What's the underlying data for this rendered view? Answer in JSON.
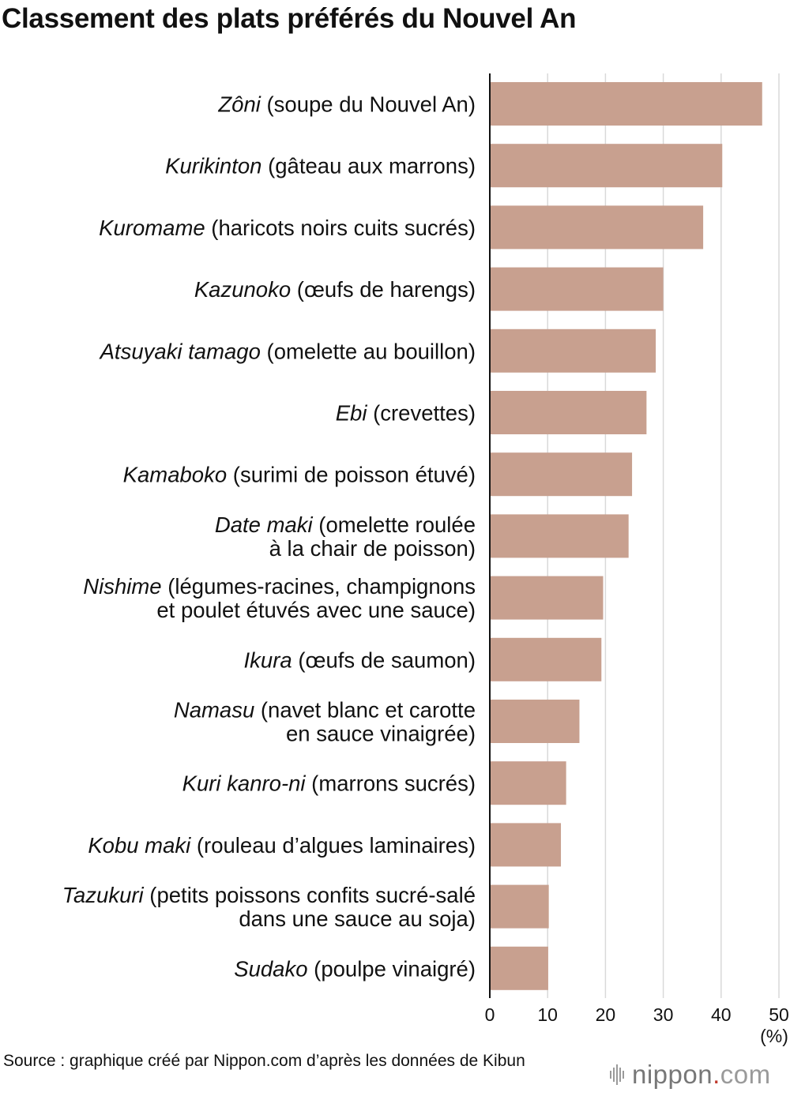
{
  "colors": {
    "bar": "#c8a08f",
    "grid": "#d9d9d9",
    "axis": "#111111",
    "text": "#111111",
    "logo_text": "#777777",
    "logo_dot": "#c0392b"
  },
  "chart_data": {
    "type": "bar",
    "orientation": "horizontal",
    "title": "Classement des plats préférés du Nouvel An",
    "xlabel": "",
    "unit": "(%)",
    "xlim": [
      0,
      50
    ],
    "ticks": [
      0,
      10,
      20,
      30,
      40,
      50
    ],
    "grid": true,
    "categories": [
      {
        "italic": "Zôni",
        "lines": [
          " (soupe du Nouvel An)"
        ]
      },
      {
        "italic": "Kurikinton",
        "lines": [
          " (gâteau aux marrons)"
        ]
      },
      {
        "italic": "Kuromame",
        "lines": [
          " (haricots noirs cuits sucrés)"
        ]
      },
      {
        "italic": "Kazunoko",
        "lines": [
          " (œufs de harengs)"
        ]
      },
      {
        "italic": "Atsuyaki tamago",
        "lines": [
          " (omelette au bouillon)"
        ]
      },
      {
        "italic": "Ebi",
        "lines": [
          " (crevettes)"
        ]
      },
      {
        "italic": "Kamaboko",
        "lines": [
          " (surimi de poisson étuvé)"
        ]
      },
      {
        "italic": "Date maki",
        "lines": [
          " (omelette roulée",
          "à la chair de poisson)"
        ]
      },
      {
        "italic": "Nishime",
        "lines": [
          " (légumes-racines, champignons",
          "et poulet étuvés avec une sauce)"
        ]
      },
      {
        "italic": "Ikura",
        "lines": [
          " (œufs de saumon)"
        ]
      },
      {
        "italic": "Namasu",
        "lines": [
          " (navet blanc et carotte",
          "en sauce vinaigrée)"
        ]
      },
      {
        "italic": "Kuri kanro-ni",
        "lines": [
          " (marrons sucrés)"
        ]
      },
      {
        "italic": "Kobu maki",
        "lines": [
          " (rouleau d’algues laminaires)"
        ]
      },
      {
        "italic": "Tazukuri",
        "lines": [
          " (petits poissons confits sucré-salé",
          "dans une sauce au soja)"
        ]
      },
      {
        "italic": "Sudako",
        "lines": [
          " (poulpe vinaigré)"
        ]
      }
    ],
    "values": [
      47.1,
      40.2,
      36.9,
      30.0,
      28.7,
      27.1,
      24.6,
      24.0,
      19.6,
      19.3,
      15.5,
      13.2,
      12.3,
      10.2,
      10.1
    ]
  },
  "source": "Source : graphique créé par Nippon.com d’après les données de Kibun",
  "logo": {
    "name": "nippon",
    "dot": ".",
    "tld": "com"
  }
}
